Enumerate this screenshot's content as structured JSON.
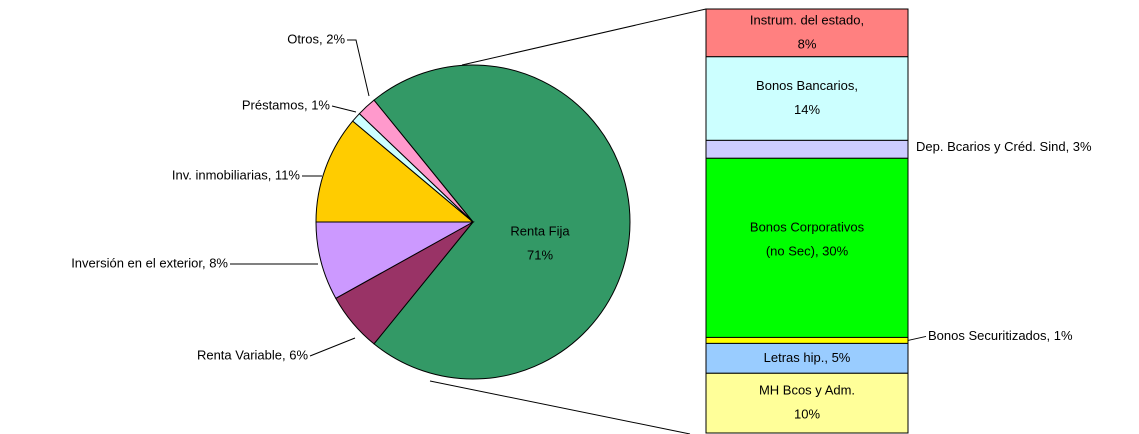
{
  "chart_data": [
    {
      "type": "pie",
      "values": [
        71,
        6,
        8,
        11,
        1,
        2
      ],
      "value_labels": [
        [
          "Renta Fija",
          "71%"
        ],
        [
          "Renta Variable, 6%"
        ],
        [
          "Inversión en el exterior, 8%"
        ],
        [
          "Inv. inmobiliarias, 11%"
        ],
        [
          "Préstamos, 1%"
        ],
        [
          "Otros, 2%"
        ]
      ],
      "colors": [
        "#339966",
        "#993366",
        "#cc99ff",
        "#ffcc00",
        "#ccffff",
        "#ff99cc"
      ]
    },
    {
      "type": "bar",
      "values": [
        8,
        14,
        3,
        30,
        1,
        5,
        10
      ],
      "value_labels": [
        [
          "Instrum. del estado,",
          "8%"
        ],
        [
          "Bonos Bancarios,",
          "14%"
        ],
        [
          "Dep. Bcarios y Créd. Sind, 3%"
        ],
        [
          "Bonos Corporativos",
          "(no Sec), 30%"
        ],
        [
          "Bonos Securitizados, 1%"
        ],
        [
          "Letras hip., 5%"
        ],
        [
          "MH Bcos y Adm.",
          "10%"
        ]
      ],
      "colors": [
        "#ff8080",
        "#ccffff",
        "#ccccff",
        "#00ff00",
        "#ffff00",
        "#99ccff",
        "#ffff99"
      ]
    }
  ]
}
